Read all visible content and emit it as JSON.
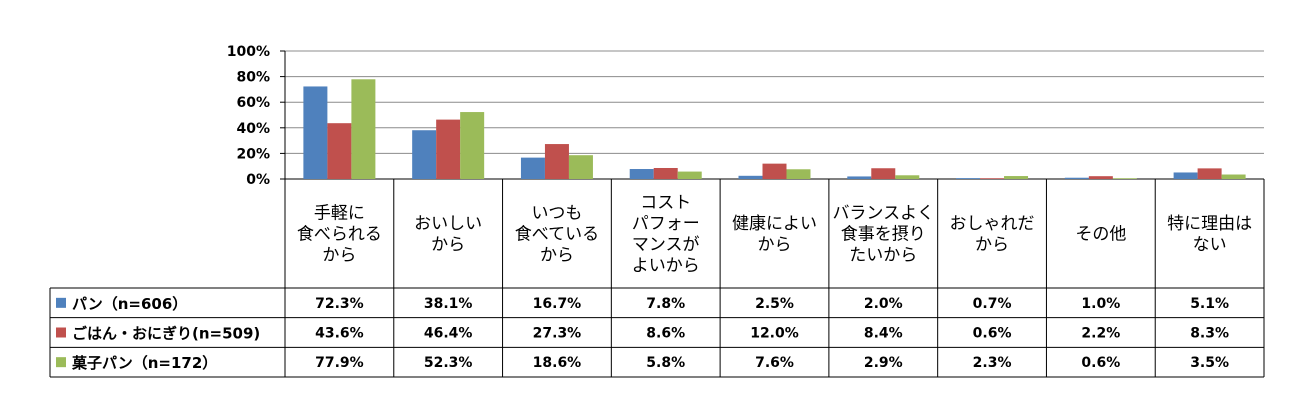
{
  "chart_data": {
    "type": "bar",
    "categories": [
      [
        "手軽に",
        "食べられる",
        "から"
      ],
      [
        "おいしい",
        "から"
      ],
      [
        "いつも",
        "食べている",
        "から"
      ],
      [
        "コスト",
        "パフォー",
        "マンスが",
        "よいから"
      ],
      [
        "健康によい",
        "から"
      ],
      [
        "バランスよく",
        "食事を摂り",
        "たいから"
      ],
      [
        "おしゃれだ",
        "から"
      ],
      [
        "その他"
      ],
      [
        "特に理由は",
        "ない"
      ]
    ],
    "series": [
      {
        "name": "パン（n=606）",
        "color": "#4F81BD",
        "values": [
          72.3,
          38.1,
          16.7,
          7.8,
          2.5,
          2.0,
          0.7,
          1.0,
          5.1
        ],
        "labels": [
          "72.3%",
          "38.1%",
          "16.7%",
          "7.8%",
          "2.5%",
          "2.0%",
          "0.7%",
          "1.0%",
          "5.1%"
        ]
      },
      {
        "name": "ごはん・おにぎり(n=509)",
        "color": "#C0504D",
        "values": [
          43.6,
          46.4,
          27.3,
          8.6,
          12.0,
          8.4,
          0.6,
          2.2,
          8.3
        ],
        "labels": [
          "43.6%",
          "46.4%",
          "27.3%",
          "8.6%",
          "12.0%",
          "8.4%",
          "0.6%",
          "2.2%",
          "8.3%"
        ]
      },
      {
        "name": "菓子パン（n=172）",
        "color": "#9BBB59",
        "values": [
          77.9,
          52.3,
          18.6,
          5.8,
          7.6,
          2.9,
          2.3,
          0.6,
          3.5
        ],
        "labels": [
          "77.9%",
          "52.3%",
          "18.6%",
          "5.8%",
          "7.6%",
          "2.9%",
          "2.3%",
          "0.6%",
          "3.5%"
        ]
      }
    ],
    "yticks": [
      "0%",
      "20%",
      "40%",
      "60%",
      "80%",
      "100%"
    ],
    "ylim": [
      0,
      100
    ],
    "grid": true,
    "legend": "data-table-left"
  }
}
